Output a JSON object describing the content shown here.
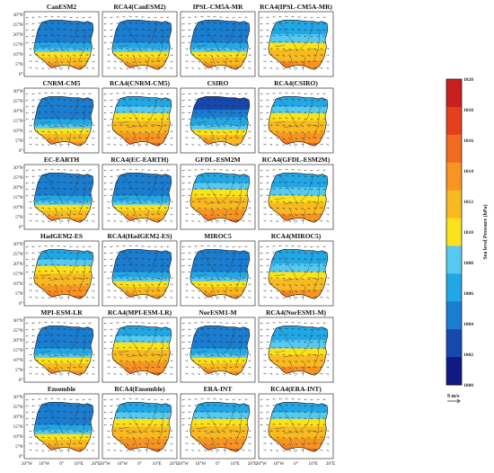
{
  "panels": [
    {
      "title": "CanESM2",
      "pattern": "b"
    },
    {
      "title": "RCA4(CanESM2)",
      "pattern": "b"
    },
    {
      "title": "IPSL-CM5A-MR",
      "pattern": "b"
    },
    {
      "title": "RCA4(IPSL-CM5A-MR)",
      "pattern": "c"
    },
    {
      "title": "CNRM-CM5",
      "pattern": "b"
    },
    {
      "title": "RCA4(CNRM-CM5)",
      "pattern": "w"
    },
    {
      "title": "CSIRO",
      "pattern": "d"
    },
    {
      "title": "RCA4(CSIRO)",
      "pattern": "w"
    },
    {
      "title": "EC-EARTH",
      "pattern": "b"
    },
    {
      "title": "RCA4(EC-EARTH)",
      "pattern": "b"
    },
    {
      "title": "GFDL-ESM2M",
      "pattern": "w"
    },
    {
      "title": "RCA4(GFDL-ESM2M)",
      "pattern": "c"
    },
    {
      "title": "HadGEM2-ES",
      "pattern": "w"
    },
    {
      "title": "RCA4(HadGEM2-ES)",
      "pattern": "b"
    },
    {
      "title": "MIROC5",
      "pattern": "b"
    },
    {
      "title": "RCA4(MIROC5)",
      "pattern": "c"
    },
    {
      "title": "MPI-ESM-LR",
      "pattern": "b"
    },
    {
      "title": "RCA4(MPI-ESM-LR)",
      "pattern": "w"
    },
    {
      "title": "NorESM1-M",
      "pattern": "b"
    },
    {
      "title": "RCA4(NorESM1-M)",
      "pattern": "c"
    },
    {
      "title": "Ensemble",
      "pattern": "b"
    },
    {
      "title": "RCA4(Ensemble)",
      "pattern": "w"
    },
    {
      "title": "ERA-INT",
      "pattern": "w"
    },
    {
      "title": "RCA4(ERA-INT)",
      "pattern": "w"
    }
  ],
  "lat_ticks": [
    "30°N",
    "25°N",
    "20°N",
    "15°N",
    "10°N",
    "5°N",
    "0°"
  ],
  "lon_ticks": [
    "20°W",
    "10°W",
    "0°",
    "10°E",
    "20°E"
  ],
  "colorbar": {
    "label": "Sea level Pressure (hPa)",
    "ticks": [
      "1020",
      "1018",
      "1016",
      "1014",
      "1012",
      "1010",
      "1008",
      "1006",
      "1004",
      "1002",
      "1000"
    ],
    "colors": [
      "#c81e1e",
      "#e5401b",
      "#f16a20",
      "#f89422",
      "#f8b921",
      "#fbe21a",
      "#56c9f0",
      "#22a7e5",
      "#1a7dd0",
      "#1648ae",
      "#111a82"
    ]
  },
  "reference_vector": "9 m/s"
}
